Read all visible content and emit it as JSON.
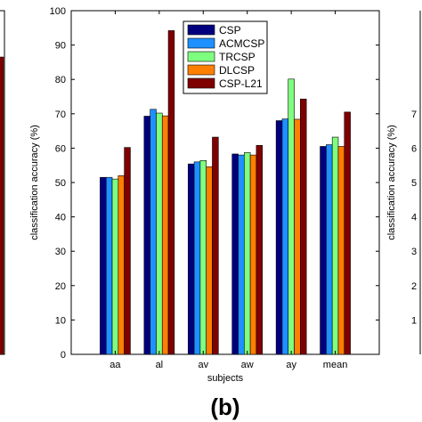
{
  "panel_label": "(b)",
  "side_fragments": {
    "right_ticks": [
      "7",
      "6",
      "5",
      "4",
      "3",
      "2",
      "1"
    ]
  },
  "colors": {
    "CSP": "#00007f",
    "ACMCSP": "#1e90ff",
    "TRCSP": "#7fff7f",
    "DLCSP": "#ff7f00",
    "CSP-L21": "#7f0000"
  },
  "chart_data": [
    {
      "type": "bar",
      "title": "",
      "xlabel": "subjects",
      "ylabel": "classification accuracy (%)",
      "ylim": [
        0,
        100
      ],
      "yticks": [
        0,
        10,
        20,
        30,
        40,
        50,
        60,
        70,
        80,
        90,
        100
      ],
      "grid": false,
      "legend_position": "top-right",
      "categories": [
        "aa",
        "al",
        "av",
        "aw",
        "ay",
        "mean"
      ],
      "series": [
        {
          "name": "CSP",
          "color": "#00007f",
          "values": [
            51.5,
            69.3,
            55.4,
            58.3,
            68.0,
            60.5
          ]
        },
        {
          "name": "ACMCSP",
          "color": "#1e90ff",
          "values": [
            51.5,
            71.3,
            56.0,
            58.0,
            68.5,
            61.0
          ]
        },
        {
          "name": "TRCSP",
          "color": "#7fff7f",
          "values": [
            51.0,
            70.2,
            56.4,
            58.7,
            80.1,
            63.2
          ]
        },
        {
          "name": "DLCSP",
          "color": "#ff7f00",
          "values": [
            52.0,
            69.4,
            54.6,
            58.0,
            68.4,
            60.5
          ]
        },
        {
          "name": "CSP-L21",
          "color": "#7f0000",
          "values": [
            60.2,
            94.2,
            63.2,
            60.8,
            74.3,
            70.5
          ]
        }
      ]
    }
  ]
}
